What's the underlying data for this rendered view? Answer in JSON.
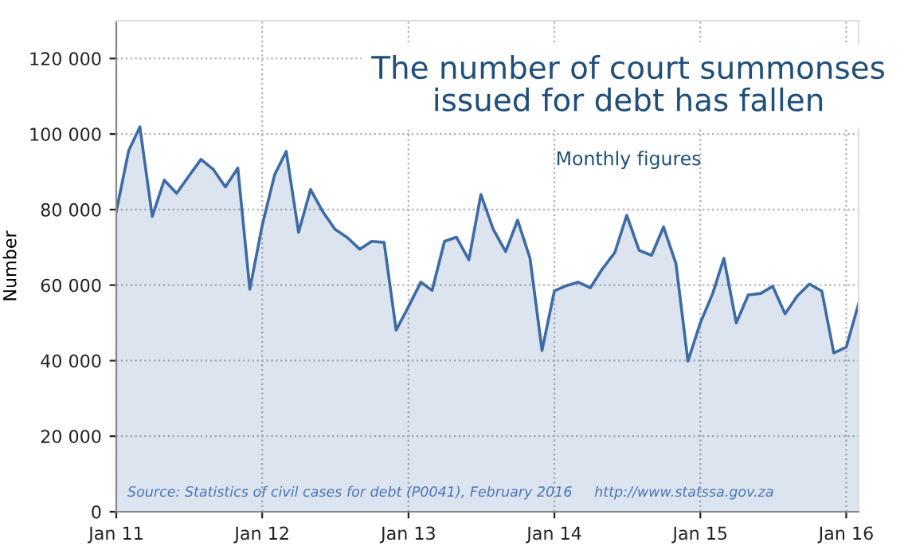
{
  "chart_data": {
    "type": "area",
    "title": "The number of court summonses\nissued for debt has fallen",
    "subtitle": "Monthly figures",
    "ylabel": "Number",
    "annotations": [
      "Source: Statistics of civil cases for debt (P0041), February 2016     http://www.statssa.gov.za"
    ],
    "x": [
      "2011-01",
      "2011-02",
      "2011-03",
      "2011-04",
      "2011-05",
      "2011-06",
      "2011-07",
      "2011-08",
      "2011-09",
      "2011-10",
      "2011-11",
      "2011-12",
      "2012-01",
      "2012-02",
      "2012-03",
      "2012-04",
      "2012-05",
      "2012-06",
      "2012-07",
      "2012-08",
      "2012-09",
      "2012-10",
      "2012-11",
      "2012-12",
      "2013-01",
      "2013-02",
      "2013-03",
      "2013-04",
      "2013-05",
      "2013-06",
      "2013-07",
      "2013-08",
      "2013-09",
      "2013-10",
      "2013-11",
      "2013-12",
      "2014-01",
      "2014-02",
      "2014-03",
      "2014-04",
      "2014-05",
      "2014-06",
      "2014-07",
      "2014-08",
      "2014-09",
      "2014-10",
      "2014-11",
      "2014-12",
      "2015-01",
      "2015-02",
      "2015-03",
      "2015-04",
      "2015-05",
      "2015-06",
      "2015-07",
      "2015-08",
      "2015-09",
      "2015-10",
      "2015-11",
      "2015-12",
      "2016-01",
      "2016-02"
    ],
    "series": [
      {
        "color": "#3d6ba5",
        "values": [
          79500,
          95600,
          101900,
          78200,
          87800,
          84300,
          88800,
          93300,
          90600,
          86000,
          91000,
          58900,
          75800,
          89200,
          95400,
          74000,
          85300,
          79400,
          74800,
          72600,
          69500,
          71600,
          71300,
          48100,
          54300,
          60800,
          58600,
          71600,
          72700,
          66700,
          84000,
          74800,
          68900,
          77200,
          67100,
          42700,
          58500,
          59900,
          60800,
          59300,
          64300,
          68600,
          78500,
          69200,
          67900,
          75400,
          65700,
          39900,
          50000,
          57800,
          67100,
          50000,
          57400,
          57800,
          59700,
          52400,
          57200,
          60300,
          58400,
          42000,
          43600,
          55100
        ]
      }
    ],
    "xlim": [
      "2011-01",
      "2016-02"
    ],
    "xticks": [
      {
        "value": "2011-01",
        "label": "Jan 11"
      },
      {
        "value": "2012-01",
        "label": "Jan 12"
      },
      {
        "value": "2013-01",
        "label": "Jan 13"
      },
      {
        "value": "2014-01",
        "label": "Jan 14"
      },
      {
        "value": "2015-01",
        "label": "Jan 15"
      },
      {
        "value": "2016-01",
        "label": "Jan 16"
      }
    ],
    "ylim": [
      0,
      130000
    ],
    "yticks": [
      0,
      {
        "value": 20000,
        "label": "20 000"
      },
      {
        "value": 40000,
        "label": "40 000"
      },
      {
        "value": 60000,
        "label": "60 000"
      },
      {
        "value": 80000,
        "label": "80 000"
      },
      {
        "value": 100000,
        "label": "100 000"
      },
      {
        "value": 120000,
        "label": "120 000"
      }
    ],
    "grid": true,
    "line_style": "solid",
    "marker": "none"
  }
}
